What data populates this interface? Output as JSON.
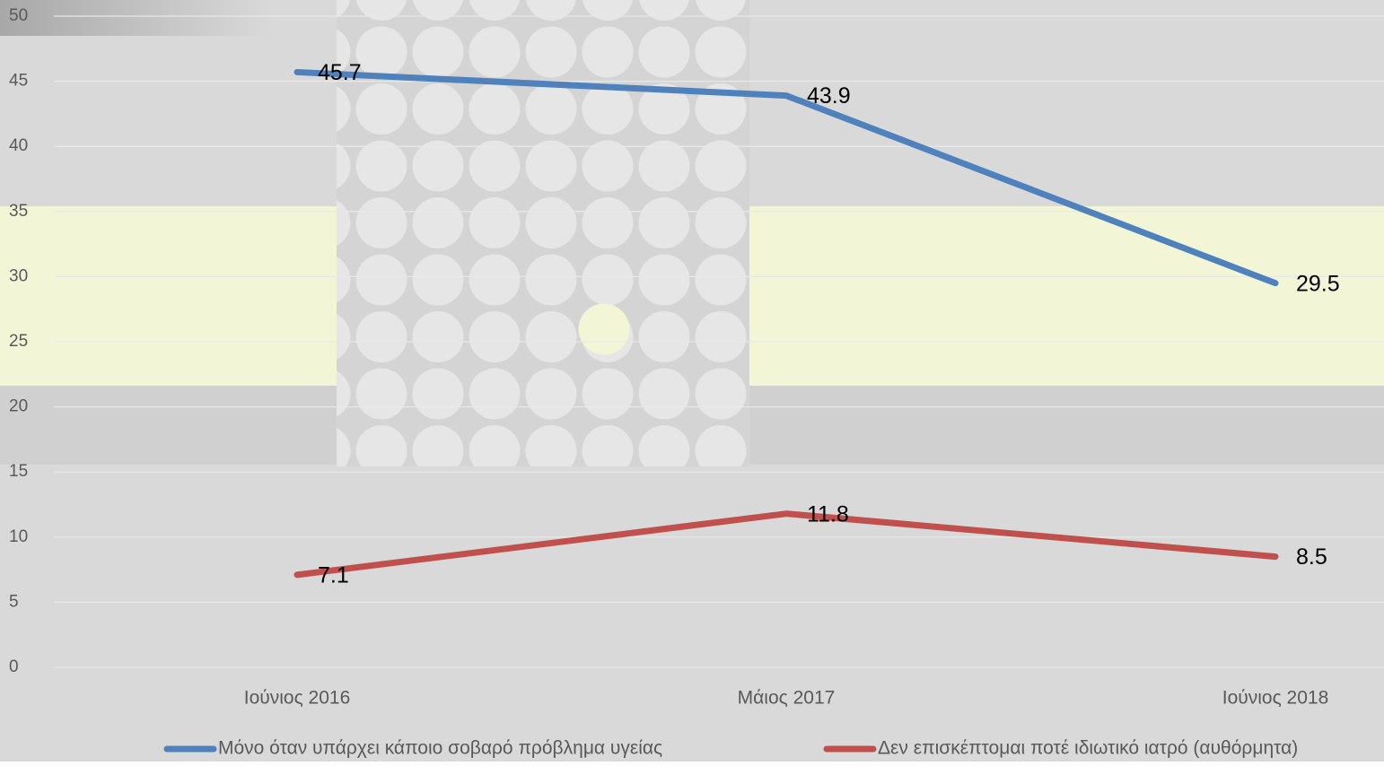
{
  "chart_data": {
    "type": "line",
    "categories": [
      "Ιούνιος 2016",
      "Μάιος 2017",
      "Ιούνιος 2018"
    ],
    "series": [
      {
        "name": "Μόνο όταν υπάρχει κάποιο σοβαρό πρόβλημα υγείας",
        "color": "#4f81bd",
        "values": [
          45.7,
          43.9,
          29.5
        ]
      },
      {
        "name": "Δεν επισκέπτομαι ποτέ ιδιωτικό ιατρό (αυθόρμητα)",
        "color": "#c0504d",
        "values": [
          7.1,
          11.8,
          8.5
        ]
      }
    ],
    "ylim": [
      0,
      50
    ],
    "yticks": [
      0,
      5,
      10,
      15,
      20,
      25,
      30,
      35,
      40,
      45,
      50
    ],
    "grid": true,
    "legend": "bottom"
  }
}
